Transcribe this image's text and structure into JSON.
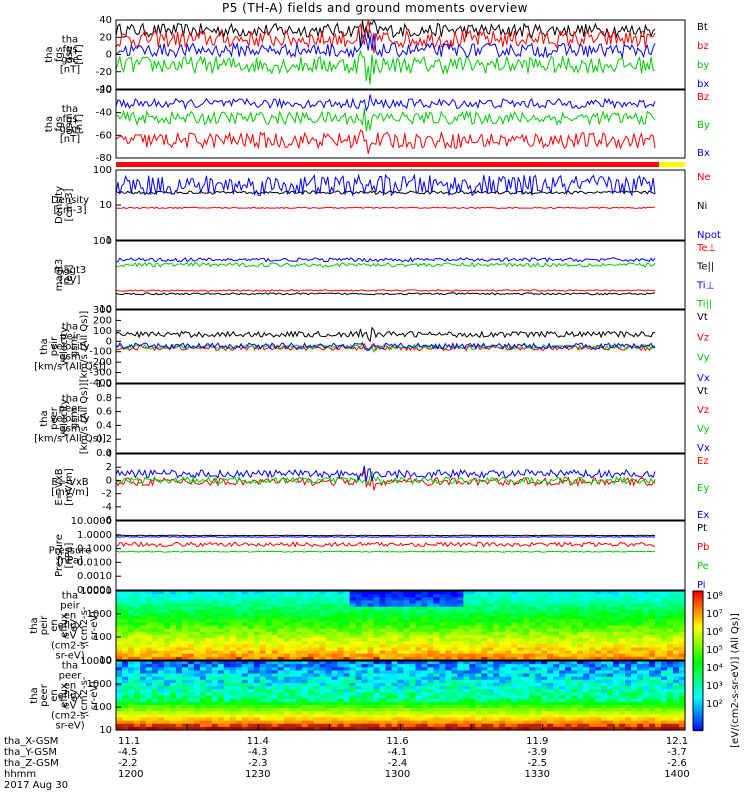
{
  "title": "P5 (TH-A) fields and ground moments overview",
  "date_label": "2017 Aug 30",
  "colors": {
    "black": "#000000",
    "red": "#ff0000",
    "green": "#00cc00",
    "blue": "#0000ff"
  },
  "chart_data": [
    {
      "type": "line",
      "panel": "fgs_gse",
      "ylabel": [
        "tha",
        "fgs",
        "gse",
        "[nT]"
      ],
      "ylim": [
        -40,
        40
      ],
      "yticks": [
        "40",
        "20",
        "0",
        "-20",
        "-40"
      ],
      "series": [
        {
          "name": "Bt",
          "color": "#000000",
          "level": 28,
          "amp": 8
        },
        {
          "name": "bz",
          "color": "#ff0000",
          "level": 18,
          "amp": 10
        },
        {
          "name": "by",
          "color": "#00cc00",
          "level": -12,
          "amp": 10
        },
        {
          "name": "bx",
          "color": "#0000ff",
          "level": 5,
          "amp": 8
        }
      ]
    },
    {
      "type": "line",
      "panel": "fgs_gsm",
      "ylabel": [
        "tha",
        "fgs",
        "gsm",
        "[nT]"
      ],
      "ylim": [
        -90,
        -5
      ],
      "yticks": [
        "-20",
        "-40",
        "-60",
        "-80"
      ],
      "series": [
        {
          "name": "Bz",
          "color": "#ff0000",
          "level": -68,
          "amp": 10
        },
        {
          "name": "By",
          "color": "#00cc00",
          "level": -40,
          "amp": 8
        },
        {
          "name": "Bx",
          "color": "#0000ff",
          "level": -22,
          "amp": 6
        }
      ]
    },
    {
      "type": "line",
      "panel": "density",
      "ylabel": [
        "Density",
        "[cm-3]"
      ],
      "ylog": true,
      "ylim": [
        1,
        150
      ],
      "yticks": [
        "100",
        "10",
        "1"
      ],
      "series": [
        {
          "name": "Ne",
          "color": "#ff0000",
          "level": 10,
          "amp": 0.5
        },
        {
          "name": "Ni",
          "color": "#000000",
          "level": 30,
          "amp": 4
        },
        {
          "name": "Npot",
          "color": "#0000ff",
          "level": 50,
          "amp": 40
        }
      ]
    },
    {
      "type": "line",
      "panel": "temperature",
      "ylabel": [
        "magt3",
        "[eV]"
      ],
      "ylog": true,
      "ylim": [
        10,
        1000
      ],
      "yticks": [
        "100",
        "10"
      ],
      "series": [
        {
          "name": "Te⊥",
          "color": "#ff0000",
          "level": 35,
          "amp": 2
        },
        {
          "name": "Te||",
          "color": "#000000",
          "level": 28,
          "amp": 2
        },
        {
          "name": "Ti⊥",
          "color": "#0000ff",
          "level": 280,
          "amp": 40
        },
        {
          "name": "Ti||",
          "color": "#00cc00",
          "level": 200,
          "amp": 30
        }
      ]
    },
    {
      "type": "line",
      "panel": "peir_velocity",
      "ylabel": [
        "tha",
        "peir",
        "velocity",
        "gsm",
        "[km/s (All Qs)]"
      ],
      "ylim": [
        -400,
        350
      ],
      "yticks": [
        "300",
        "200",
        "100",
        "0",
        "-100",
        "-200",
        "-300",
        "-400"
      ],
      "series": [
        {
          "name": "Vt",
          "color": "#000000",
          "level": 100,
          "amp": 30
        },
        {
          "name": "Vz",
          "color": "#ff0000",
          "level": -40,
          "amp": 25
        },
        {
          "name": "Vy",
          "color": "#00cc00",
          "level": -30,
          "amp": 25
        },
        {
          "name": "Vx",
          "color": "#0000ff",
          "level": -20,
          "amp": 30
        }
      ]
    },
    {
      "type": "line",
      "panel": "peer_velocity",
      "ylabel": [
        "tha",
        "peer",
        "velocity",
        "gsm",
        "[km/s (All Qs)]"
      ],
      "ylim": [
        0,
        1.0
      ],
      "yticks": [
        "1.0",
        "0.8",
        "0.6",
        "0.4",
        "0.2",
        "0.0"
      ],
      "series": [
        {
          "name": "Vt",
          "color": "#000000"
        },
        {
          "name": "Vz",
          "color": "#ff0000"
        },
        {
          "name": "Vy",
          "color": "#00cc00"
        },
        {
          "name": "Vx",
          "color": "#0000ff"
        }
      ]
    },
    {
      "type": "line",
      "panel": "efield",
      "ylabel": [
        "E=-VxB",
        "[mV/m]"
      ],
      "ylim": [
        -6,
        4
      ],
      "yticks": [
        "4",
        "2",
        "0",
        "-2",
        "-4",
        "-6"
      ],
      "series": [
        {
          "name": "Ez",
          "color": "#ff0000",
          "level": -0.2,
          "amp": 0.6
        },
        {
          "name": "Ey",
          "color": "#00cc00",
          "level": 0,
          "amp": 0.5
        },
        {
          "name": "Ex",
          "color": "#0000ff",
          "level": 1,
          "amp": 0.6
        }
      ]
    },
    {
      "type": "line",
      "panel": "pressure",
      "ylabel": [
        "Pressure",
        "[nPa]"
      ],
      "ylog": true,
      "ylim": [
        0.0001,
        10
      ],
      "yticks": [
        "10.0000",
        "1.0000",
        "0.1000",
        "0.0100",
        "0.0010",
        "0.0001"
      ],
      "series": [
        {
          "name": "Pt",
          "color": "#000000",
          "level": 0.9,
          "amp": 0.05
        },
        {
          "name": "Pb",
          "color": "#ff0000",
          "level": 0.2,
          "amp": 0.08
        },
        {
          "name": "Pe",
          "color": "#00cc00",
          "level": 0.06,
          "amp": 0.005
        },
        {
          "name": "Pi",
          "color": "#0000ff",
          "level": 0.7,
          "amp": 0.05
        }
      ]
    },
    {
      "type": "heatmap",
      "panel": "peir_en_eflux",
      "ylabel": [
        "tha",
        "peir",
        "en",
        "eflux",
        "eV",
        "(cm2-s-",
        "sr-eV)"
      ],
      "ylog": true,
      "ylim": [
        5,
        30000
      ],
      "yticks": [
        "10000",
        "1000",
        "100",
        "10"
      ]
    },
    {
      "type": "heatmap",
      "panel": "peer_en_eflux",
      "ylabel": [
        "tha",
        "peer",
        "en",
        "eflux",
        "eV",
        "(cm2-s-",
        "sr-eV)"
      ],
      "ylog": true,
      "ylim": [
        5,
        30000
      ],
      "yticks": [
        "10000",
        "1000",
        "100",
        "10"
      ]
    }
  ],
  "colorbar": {
    "label": "[eV/(cm2-s-sr-eV)] (All Qs)]",
    "ticks": [
      "10⁸",
      "10⁷",
      "10⁶",
      "10⁵",
      "10⁴",
      "10³",
      "10²"
    ]
  },
  "x_axis": {
    "rows": [
      {
        "name": "tha_X-GSM",
        "values": [
          "11.1",
          "11.4",
          "11.6",
          "11.9",
          "12.1"
        ]
      },
      {
        "name": "tha_Y-GSM",
        "values": [
          "-4.5",
          "-4.3",
          "-4.1",
          "-3.9",
          "-3.7"
        ]
      },
      {
        "name": "tha_Z-GSM",
        "values": [
          "-2.2",
          "-2.3",
          "-2.4",
          "-2.5",
          "-2.6"
        ]
      },
      {
        "name": "hhmm",
        "values": [
          "1200",
          "1230",
          "1300",
          "1330",
          "1400"
        ]
      }
    ]
  }
}
